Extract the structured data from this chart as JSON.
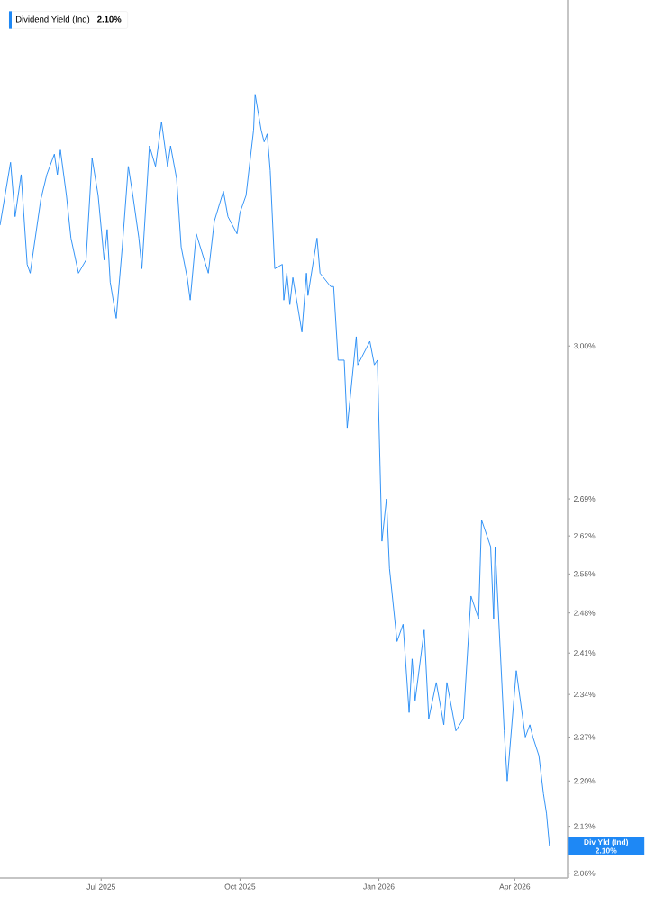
{
  "chart_data": {
    "type": "line",
    "x": [
      "2025-04-25",
      "2025-05-02",
      "2025-05-05",
      "2025-05-09",
      "2025-05-13",
      "2025-05-15",
      "2025-05-22",
      "2025-05-26",
      "2025-05-31",
      "2025-06-02",
      "2025-06-04",
      "2025-06-08",
      "2025-06-11",
      "2025-06-16",
      "2025-06-21",
      "2025-06-25",
      "2025-06-29",
      "2025-07-03",
      "2025-07-05",
      "2025-07-07",
      "2025-07-11",
      "2025-07-15",
      "2025-07-19",
      "2025-07-22",
      "2025-07-26",
      "2025-07-28",
      "2025-07-31",
      "2025-08-02",
      "2025-08-06",
      "2025-08-10",
      "2025-08-14",
      "2025-08-16",
      "2025-08-20",
      "2025-08-23",
      "2025-08-27",
      "2025-08-29",
      "2025-09-02",
      "2025-09-10",
      "2025-09-14",
      "2025-09-20",
      "2025-09-23",
      "2025-09-29",
      "2025-10-01",
      "2025-10-05",
      "2025-10-10",
      "2025-10-11",
      "2025-10-15",
      "2025-10-17",
      "2025-10-19",
      "2025-10-21",
      "2025-10-24",
      "2025-10-29",
      "2025-10-30",
      "2025-11-01",
      "2025-11-03",
      "2025-11-05",
      "2025-11-11",
      "2025-11-14",
      "2025-11-15",
      "2025-11-21",
      "2025-11-23",
      "2025-11-30",
      "2025-12-02",
      "2025-12-05",
      "2025-12-09",
      "2025-12-11",
      "2025-12-17",
      "2025-12-18",
      "2025-12-26",
      "2025-12-29",
      "2025-12-31",
      "2026-01-03",
      "2026-01-06",
      "2026-01-08",
      "2026-01-13",
      "2026-01-17",
      "2026-01-21",
      "2026-01-23",
      "2026-01-25",
      "2026-01-31",
      "2026-02-03",
      "2026-02-08",
      "2026-02-13",
      "2026-02-15",
      "2026-02-21",
      "2026-02-26",
      "2026-03-03",
      "2026-03-08",
      "2026-03-10",
      "2026-03-16",
      "2026-03-18",
      "2026-03-19",
      "2026-03-25",
      "2026-03-27",
      "2026-04-02",
      "2026-04-08",
      "2026-04-11",
      "2026-04-13",
      "2026-04-17",
      "2026-04-20",
      "2026-04-22",
      "2026-04-24"
    ],
    "series": [
      {
        "name": "Dividend Yield (Ind)",
        "color": "#1e88f5",
        "values": [
          3.27,
          3.42,
          3.29,
          3.39,
          3.18,
          3.16,
          3.33,
          3.39,
          3.44,
          3.39,
          3.45,
          3.34,
          3.24,
          3.16,
          3.19,
          3.43,
          3.34,
          3.19,
          3.26,
          3.14,
          3.06,
          3.22,
          3.41,
          3.34,
          3.24,
          3.17,
          3.34,
          3.46,
          3.41,
          3.52,
          3.41,
          3.46,
          3.38,
          3.22,
          3.15,
          3.1,
          3.25,
          3.16,
          3.28,
          3.35,
          3.29,
          3.25,
          3.3,
          3.34,
          3.5,
          3.59,
          3.5,
          3.47,
          3.49,
          3.4,
          3.17,
          3.18,
          3.1,
          3.16,
          3.09,
          3.15,
          3.03,
          3.16,
          3.11,
          3.24,
          3.16,
          3.13,
          3.13,
          2.97,
          2.97,
          2.83,
          3.02,
          2.96,
          3.01,
          2.96,
          2.97,
          2.61,
          2.69,
          2.56,
          2.43,
          2.46,
          2.31,
          2.4,
          2.33,
          2.45,
          2.3,
          2.36,
          2.29,
          2.36,
          2.28,
          2.3,
          2.51,
          2.47,
          2.65,
          2.6,
          2.47,
          2.6,
          2.28,
          2.2,
          2.38,
          2.27,
          2.29,
          2.27,
          2.24,
          2.18,
          2.15,
          2.1
        ]
      }
    ],
    "xlim": [
      "2025-04-25",
      "2026-05-06"
    ],
    "xticks": [
      {
        "value": "2025-07-01",
        "label": "Jul 2025"
      },
      {
        "value": "2025-10-01",
        "label": "Oct 2025"
      },
      {
        "value": "2026-01-01",
        "label": "Jan 2026"
      },
      {
        "value": "2026-04-01",
        "label": "Apr 2026"
      }
    ],
    "ylim": [
      2.053,
      3.84
    ],
    "yticks": [
      {
        "value": 2.06,
        "label": "2.06%"
      },
      {
        "value": 2.13,
        "label": "2.13%"
      },
      {
        "value": 2.2,
        "label": "2.20%"
      },
      {
        "value": 2.27,
        "label": "2.27%"
      },
      {
        "value": 2.34,
        "label": "2.34%"
      },
      {
        "value": 2.41,
        "label": "2.41%"
      },
      {
        "value": 2.48,
        "label": "2.48%"
      },
      {
        "value": 2.55,
        "label": "2.55%"
      },
      {
        "value": 2.62,
        "label": "2.62%"
      },
      {
        "value": 2.69,
        "label": "2.69%"
      },
      {
        "value": 3.0,
        "label": "3.00%"
      }
    ],
    "log": "y",
    "legend": "top left",
    "annotations": [
      "Div Yld (Ind)",
      "2.10%",
      "2.10%"
    ]
  }
}
